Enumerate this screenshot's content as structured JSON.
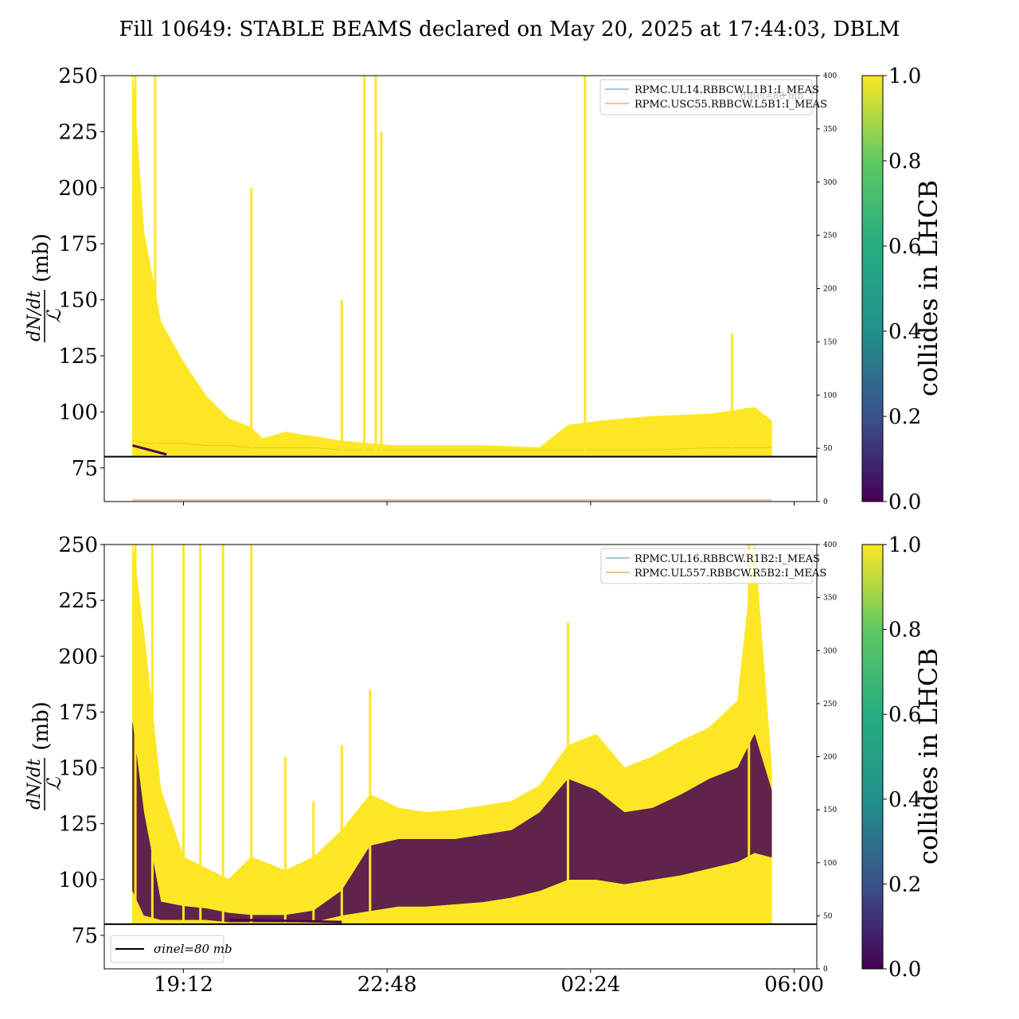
{
  "chart_data": {
    "title": "Fill 10649: STABLE BEAMS declared on May 20, 2025 at 17:44:03, DBLM",
    "panels": [
      {
        "type": "area",
        "ylabel": "(mb)",
        "ylim": [
          60,
          250
        ],
        "yticks": [
          75,
          100,
          125,
          150,
          175,
          200,
          225,
          250
        ],
        "y2lim": [
          0,
          400
        ],
        "y2ticks": [
          0,
          50,
          100,
          150,
          200,
          250,
          300,
          350,
          400
        ],
        "xlim": [
          17.8,
          6.4
        ],
        "xticks": [
          "19:12",
          "22:48",
          "02:24",
          "06:00"
        ],
        "legend": [
          "RPMC.UL14.RBBCW.L1B1:I_MEAS",
          "RPMC.USC55.RBBCW.L5B1:I_MEAS"
        ],
        "ghost_legend": "σinel=80 mb",
        "reference_line": 80,
        "colorbar": {
          "label": "collides in LHCB",
          "ticks": [
            "0.0",
            "0.2",
            "0.4",
            "0.6",
            "0.8",
            "1.0"
          ],
          "range": [
            0,
            1
          ]
        },
        "x": [
          18.3,
          18.5,
          18.8,
          19.2,
          19.6,
          20.0,
          20.4,
          20.6,
          21.0,
          21.5,
          22.0,
          22.4,
          22.9,
          23.5,
          24.5,
          25.5,
          26.0,
          26.6,
          27.5,
          28.5,
          29.3,
          29.6
        ],
        "envelope": [
          250,
          180,
          140,
          122,
          107,
          97,
          93,
          88,
          91,
          89,
          87,
          86,
          85,
          85,
          85,
          84,
          94,
          96,
          98,
          99,
          102,
          96
        ],
        "baseline": [
          87,
          86,
          86,
          86,
          85,
          85,
          84,
          84,
          84,
          84,
          83,
          83,
          83,
          83,
          83,
          83,
          83,
          83,
          83,
          84,
          84,
          84
        ],
        "spikes": [
          {
            "x": 18.35,
            "y": 250
          },
          {
            "x": 18.7,
            "y": 250
          },
          {
            "x": 20.4,
            "y": 200
          },
          {
            "x": 22.0,
            "y": 150
          },
          {
            "x": 22.4,
            "y": 250
          },
          {
            "x": 22.6,
            "y": 250
          },
          {
            "x": 22.7,
            "y": 225
          },
          {
            "x": 26.3,
            "y": 250
          },
          {
            "x": 28.9,
            "y": 135
          }
        ],
        "low_series": [
          {
            "x": 18.3,
            "y": 85
          },
          {
            "x": 18.6,
            "y": 83
          },
          {
            "x": 18.9,
            "y": 81
          }
        ]
      },
      {
        "type": "area",
        "ylabel": "(mb)",
        "ylim": [
          60,
          250
        ],
        "yticks": [
          75,
          100,
          125,
          150,
          175,
          200,
          225,
          250
        ],
        "y2lim": [
          0,
          400
        ],
        "y2ticks": [
          0,
          50,
          100,
          150,
          200,
          250,
          300,
          350,
          400
        ],
        "xlim": [
          17.8,
          6.4
        ],
        "xticks": [
          "19:12",
          "22:48",
          "02:24",
          "06:00"
        ],
        "legend": [
          "RPMC.UL16.RBBCW.R1B2:I_MEAS",
          "RPMC.UL557.RBBCW.R5B2:I_MEAS"
        ],
        "bottom_legend": "σinel=80 mb",
        "reference_line": 80,
        "colorbar": {
          "label": "collides in LHCB",
          "ticks": [
            "0.0",
            "0.2",
            "0.4",
            "0.6",
            "0.8",
            "1.0"
          ],
          "range": [
            0,
            1
          ]
        },
        "x": [
          18.3,
          18.5,
          18.8,
          19.2,
          19.6,
          20.0,
          20.4,
          21.0,
          21.5,
          22.0,
          22.5,
          23.0,
          23.5,
          24.0,
          24.5,
          25.0,
          25.5,
          26.0,
          26.5,
          27.0,
          27.5,
          28.0,
          28.5,
          29.0,
          29.3,
          29.6
        ],
        "envelope": [
          250,
          210,
          140,
          110,
          105,
          100,
          110,
          104,
          110,
          122,
          138,
          132,
          130,
          131,
          133,
          135,
          142,
          160,
          165,
          150,
          155,
          162,
          168,
          180,
          250,
          150
        ],
        "dark_upper": [
          170,
          130,
          90,
          88,
          87,
          85,
          84,
          84,
          86,
          95,
          115,
          118,
          118,
          118,
          120,
          122,
          130,
          145,
          140,
          130,
          132,
          138,
          145,
          150,
          165,
          140
        ],
        "dark_lower": [
          95,
          84,
          82,
          82,
          82,
          81,
          81,
          81,
          81,
          84,
          86,
          88,
          88,
          89,
          90,
          92,
          95,
          100,
          100,
          98,
          100,
          102,
          105,
          108,
          112,
          110
        ],
        "spikes": [
          {
            "x": 18.35,
            "y": 250
          },
          {
            "x": 18.65,
            "y": 250
          },
          {
            "x": 19.2,
            "y": 250
          },
          {
            "x": 19.5,
            "y": 250
          },
          {
            "x": 19.9,
            "y": 250
          },
          {
            "x": 20.4,
            "y": 250
          },
          {
            "x": 21.0,
            "y": 155
          },
          {
            "x": 21.5,
            "y": 135
          },
          {
            "x": 22.0,
            "y": 160
          },
          {
            "x": 22.5,
            "y": 185
          },
          {
            "x": 26.0,
            "y": 215
          },
          {
            "x": 29.2,
            "y": 250
          }
        ],
        "low_series": [
          {
            "x": 20.0,
            "y": 82
          },
          {
            "x": 22.0,
            "y": 81
          }
        ]
      }
    ]
  }
}
